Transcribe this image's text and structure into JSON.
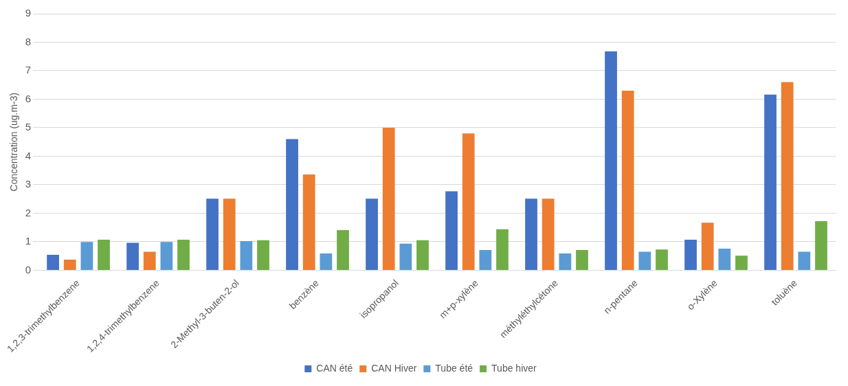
{
  "chart_data": {
    "type": "bar",
    "ylabel": "Concentration (ug.m-3)",
    "categories": [
      "1,2,3-trimethylbenzene",
      "1,2,4-trimethylbenzene",
      "2-Methyl-3-buten-2-ol",
      "benzène",
      "isopropanol",
      "m+p-xylène",
      "méthyléthylcétone",
      "n-pentane",
      "o-Xylène",
      "toluène"
    ],
    "series": [
      {
        "name": "CAN été",
        "color": "#4472c4",
        "values": [
          0.54,
          0.96,
          2.51,
          4.6,
          2.51,
          2.77,
          2.51,
          7.68,
          1.07,
          6.16
        ]
      },
      {
        "name": "CAN Hiver",
        "color": "#ed7d31",
        "values": [
          0.37,
          0.65,
          2.51,
          3.36,
          5.0,
          4.8,
          2.51,
          6.3,
          1.67,
          6.6
        ]
      },
      {
        "name": "Tube été",
        "color": "#5b9bd5",
        "values": [
          0.99,
          0.99,
          1.02,
          0.59,
          0.93,
          0.71,
          0.59,
          0.65,
          0.76,
          0.65
        ]
      },
      {
        "name": "Tube hiver",
        "color": "#70ad47",
        "values": [
          1.07,
          1.07,
          1.05,
          1.41,
          1.05,
          1.44,
          0.71,
          0.73,
          0.51,
          1.72
        ]
      }
    ],
    "ylim": [
      0,
      9
    ],
    "yticks": [
      0,
      1,
      2,
      3,
      4,
      5,
      6,
      7,
      8,
      9
    ],
    "grid": "y",
    "legend": "bottom"
  }
}
